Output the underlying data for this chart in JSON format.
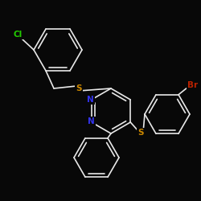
{
  "background_color": "#080808",
  "atom_colors": {
    "Cl": "#22cc00",
    "Br": "#bb2200",
    "N": "#3333ee",
    "S": "#cc8800",
    "C": "#e8e8e8"
  },
  "lw": 1.2,
  "figsize": [
    2.5,
    2.5
  ],
  "dpi": 100
}
